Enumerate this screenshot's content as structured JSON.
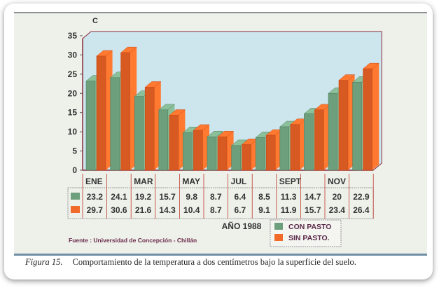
{
  "chart_data": {
    "type": "bar",
    "title": "",
    "ylabel": "C",
    "xlabel": "AÑO 1988",
    "ylim": [
      0,
      35
    ],
    "yticks": [
      0,
      5,
      10,
      15,
      20,
      25,
      30,
      35
    ],
    "categories": [
      "ENE",
      "",
      "MAR",
      "",
      "MAY",
      "",
      "JUL",
      "",
      "SEPT",
      "",
      "NOV",
      ""
    ],
    "series": [
      {
        "name": "CON PASTO",
        "color": "#6e9f7c",
        "values": [
          23.2,
          24.1,
          19.2,
          15.7,
          9.8,
          8.7,
          6.4,
          8.5,
          11.3,
          14.7,
          20,
          22.9
        ]
      },
      {
        "name": "SIN PASTO.",
        "color": "#f26a2a",
        "values": [
          29.7,
          30.6,
          21.6,
          14.3,
          10.4,
          8.7,
          6.7,
          9.1,
          11.9,
          15.7,
          23.4,
          26.4
        ]
      }
    ],
    "value_labels": {
      "CON PASTO": [
        "23.2",
        "24.1",
        "19.2",
        "15.7",
        "9.8",
        "8.7",
        "6.4",
        "8.5",
        "11.3",
        "14.7",
        "20",
        "22.9"
      ],
      "SIN PASTO.": [
        "29.7",
        "30.6",
        "21.6",
        "14.3",
        "10.4",
        "8.7",
        "6.7",
        "9.1",
        "11.9",
        "15.7",
        "23.4",
        "26.4"
      ]
    },
    "legend_position": "bottom-right",
    "grid": false,
    "source": "Fuente : Universidad de Concepción - Chillán"
  },
  "caption": {
    "label": "Figura 15.",
    "text": "Comportamiento de la temperatura a dos centímetros bajo la superficie del suelo."
  }
}
